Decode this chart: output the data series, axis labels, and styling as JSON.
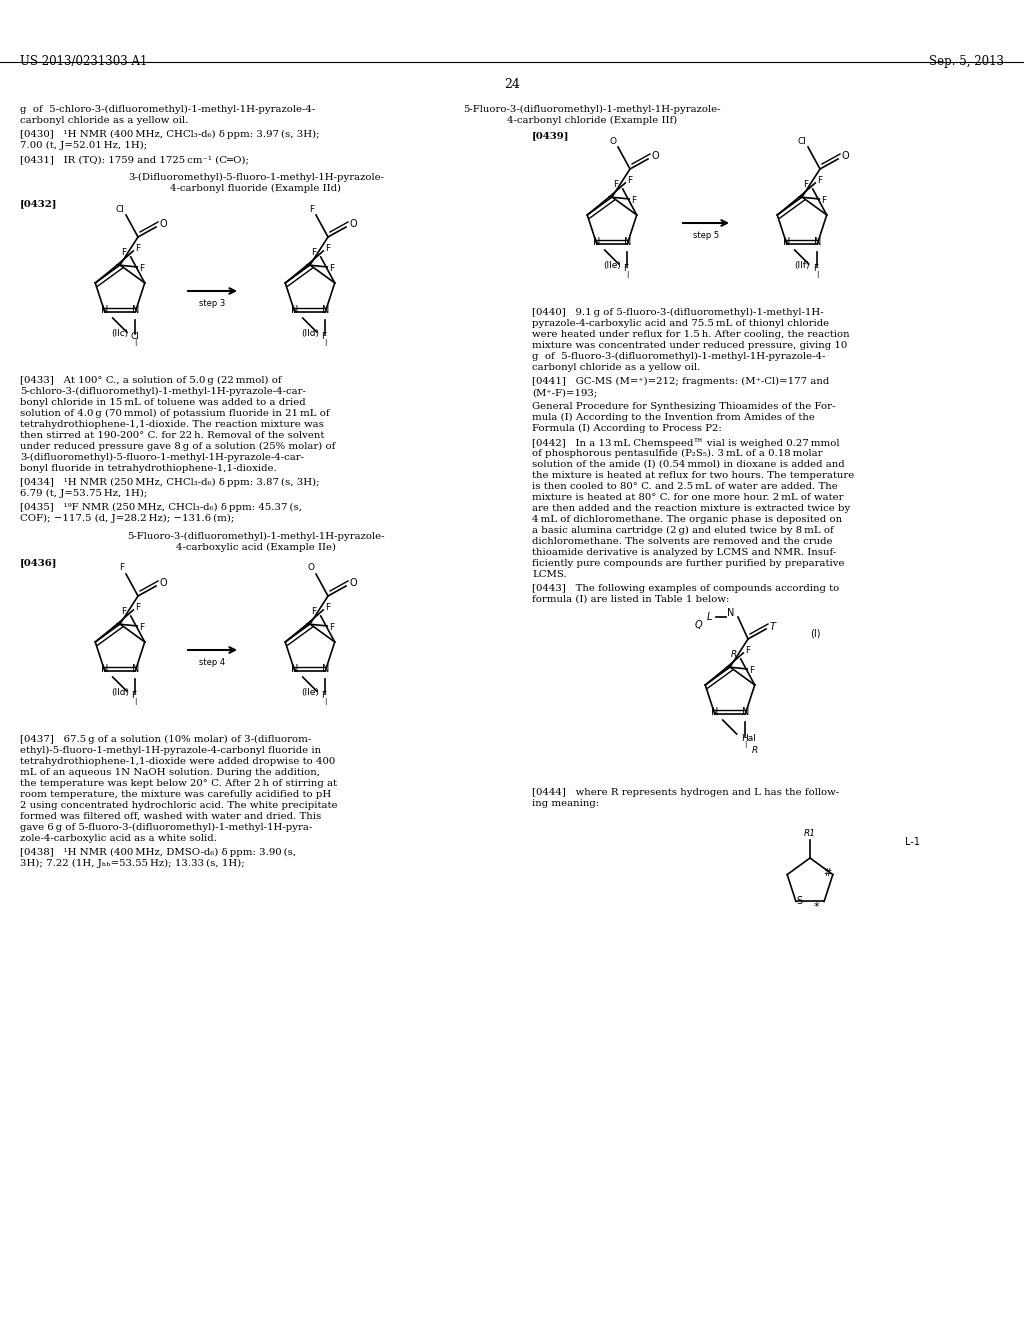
{
  "patent_number": "US 2013/0231303 A1",
  "patent_date": "Sep. 5, 2013",
  "page_number": "24",
  "bg_color": "#ffffff",
  "text_color": "#000000"
}
